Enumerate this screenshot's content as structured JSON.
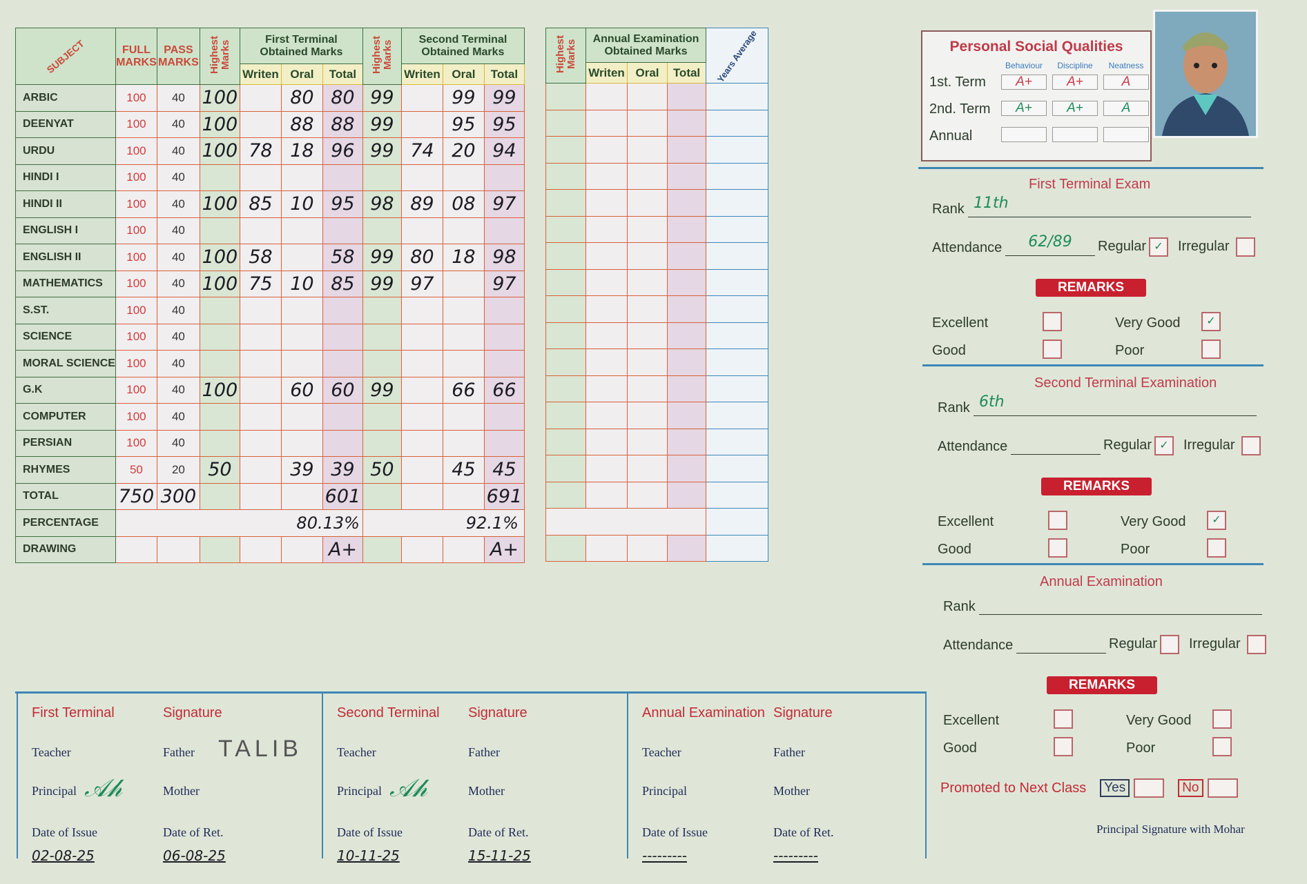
{
  "main_table": {
    "headers": {
      "subject": "SUBJECT",
      "full_marks": "FULL MARKS",
      "pass_marks": "PASS MARKS",
      "highest_marks": "Highest Marks",
      "first_terminal": "First Terminal Obtained Marks",
      "second_terminal": "Second Terminal Obtained Marks",
      "writen": "Writen",
      "oral": "Oral",
      "total": "Total"
    },
    "rows": [
      {
        "subject": "ARBIC",
        "full": "100",
        "pass": "40",
        "ft_high": "100",
        "ft_w": "",
        "ft_o": "80",
        "ft_t": "80",
        "st_high": "99",
        "st_w": "",
        "st_o": "99",
        "st_t": "99"
      },
      {
        "subject": "DEENYAT",
        "full": "100",
        "pass": "40",
        "ft_high": "100",
        "ft_w": "",
        "ft_o": "88",
        "ft_t": "88",
        "st_high": "99",
        "st_w": "",
        "st_o": "95",
        "st_t": "95"
      },
      {
        "subject": "URDU",
        "full": "100",
        "pass": "40",
        "ft_high": "100",
        "ft_w": "78",
        "ft_o": "18",
        "ft_t": "96",
        "st_high": "99",
        "st_w": "74",
        "st_o": "20",
        "st_t": "94"
      },
      {
        "subject": "HINDI I",
        "full": "100",
        "pass": "40",
        "ft_high": "",
        "ft_w": "",
        "ft_o": "",
        "ft_t": "",
        "st_high": "",
        "st_w": "",
        "st_o": "",
        "st_t": ""
      },
      {
        "subject": "HINDI II",
        "full": "100",
        "pass": "40",
        "ft_high": "100",
        "ft_w": "85",
        "ft_o": "10",
        "ft_t": "95",
        "st_high": "98",
        "st_w": "89",
        "st_o": "08",
        "st_t": "97"
      },
      {
        "subject": "ENGLISH I",
        "full": "100",
        "pass": "40",
        "ft_high": "",
        "ft_w": "",
        "ft_o": "",
        "ft_t": "",
        "st_high": "",
        "st_w": "",
        "st_o": "",
        "st_t": ""
      },
      {
        "subject": "ENGLISH II",
        "full": "100",
        "pass": "40",
        "ft_high": "100",
        "ft_w": "58",
        "ft_o": "",
        "ft_t": "58",
        "st_high": "99",
        "st_w": "80",
        "st_o": "18",
        "st_t": "98"
      },
      {
        "subject": "MATHEMATICS",
        "full": "100",
        "pass": "40",
        "ft_high": "100",
        "ft_w": "75",
        "ft_o": "10",
        "ft_t": "85",
        "st_high": "99",
        "st_w": "97",
        "st_o": "",
        "st_t": "97"
      },
      {
        "subject": "S.ST.",
        "full": "100",
        "pass": "40",
        "ft_high": "",
        "ft_w": "",
        "ft_o": "",
        "ft_t": "",
        "st_high": "",
        "st_w": "",
        "st_o": "",
        "st_t": ""
      },
      {
        "subject": "SCIENCE",
        "full": "100",
        "pass": "40",
        "ft_high": "",
        "ft_w": "",
        "ft_o": "",
        "ft_t": "",
        "st_high": "",
        "st_w": "",
        "st_o": "",
        "st_t": ""
      },
      {
        "subject": "MORAL SCIENCE",
        "full": "100",
        "pass": "40",
        "ft_high": "",
        "ft_w": "",
        "ft_o": "",
        "ft_t": "",
        "st_high": "",
        "st_w": "",
        "st_o": "",
        "st_t": ""
      },
      {
        "subject": "G.K",
        "full": "100",
        "pass": "40",
        "ft_high": "100",
        "ft_w": "",
        "ft_o": "60",
        "ft_t": "60",
        "st_high": "99",
        "st_w": "",
        "st_o": "66",
        "st_t": "66"
      },
      {
        "subject": "COMPUTER",
        "full": "100",
        "pass": "40",
        "ft_high": "",
        "ft_w": "",
        "ft_o": "",
        "ft_t": "",
        "st_high": "",
        "st_w": "",
        "st_o": "",
        "st_t": ""
      },
      {
        "subject": "PERSIAN",
        "full": "100",
        "pass": "40",
        "ft_high": "",
        "ft_w": "",
        "ft_o": "",
        "ft_t": "",
        "st_high": "",
        "st_w": "",
        "st_o": "",
        "st_t": ""
      },
      {
        "subject": "RHYMES",
        "full": "50",
        "pass": "20",
        "ft_high": "50",
        "ft_w": "",
        "ft_o": "39",
        "ft_t": "39",
        "st_high": "50",
        "st_w": "",
        "st_o": "45",
        "st_t": "45"
      },
      {
        "subject": "TOTAL",
        "full": "750",
        "pass": "300",
        "ft_high": "",
        "ft_w": "",
        "ft_o": "",
        "ft_t": "601",
        "st_high": "",
        "st_w": "",
        "st_o": "",
        "st_t": "691"
      }
    ],
    "percentage": {
      "label": "PERCENTAGE",
      "first": "80.13%",
      "second": "92.1%"
    },
    "drawing": {
      "label": "DRAWING",
      "first": "A+",
      "second": "A+"
    }
  },
  "annual_table": {
    "highest_marks": "Highest Marks",
    "title": "Annual Examination Obtained Marks",
    "writen": "Writen",
    "oral": "Oral",
    "total": "Total",
    "years_average": "Years Average"
  },
  "personal_social": {
    "title": "Personal Social Qualities",
    "columns": [
      "Behaviour",
      "Discipline",
      "Neatness"
    ],
    "rows": [
      {
        "label": "1st. Term",
        "values": [
          "A+",
          "A+",
          "A"
        ]
      },
      {
        "label": "2nd. Term",
        "values": [
          "A+",
          "A+",
          "A"
        ]
      },
      {
        "label": "Annual",
        "values": [
          "",
          "",
          ""
        ]
      }
    ]
  },
  "exams": [
    {
      "title": "First Terminal Exam",
      "rank": "11th",
      "attendance": "62/89",
      "regular": true,
      "irregular": false,
      "remarks": {
        "excellent": false,
        "very_good": true,
        "good": false,
        "poor": false
      }
    },
    {
      "title": "Second Terminal Examination",
      "rank": "6th",
      "attendance": "",
      "regular": true,
      "irregular": false,
      "remarks": {
        "excellent": false,
        "very_good": true,
        "good": false,
        "poor": false
      }
    },
    {
      "title": "Annual Examination",
      "rank": "",
      "attendance": "",
      "regular": false,
      "irregular": false,
      "remarks": {
        "excellent": false,
        "very_good": false,
        "good": false,
        "poor": false
      }
    }
  ],
  "labels": {
    "rank": "Rank",
    "attendance": "Attendance",
    "regular": "Regular",
    "irregular": "Irregular",
    "remarks": "REMARKS",
    "excellent": "Excellent",
    "very_good": "Very Good",
    "good": "Good",
    "poor": "Poor",
    "promoted": "Promoted to Next Class",
    "yes": "Yes",
    "no": "No",
    "principal_sig": "Principal Signature with Mohar",
    "signature": "Signature",
    "teacher": "Teacher",
    "father": "Father",
    "principal": "Principal",
    "mother": "Mother",
    "date_issue": "Date of Issue",
    "date_ret": "Date of Ret."
  },
  "signatures": [
    {
      "title": "First Terminal",
      "father_sig": "TALIB",
      "date_issue": "02-08-25",
      "date_ret": "06-08-25"
    },
    {
      "title": "Second Terminal",
      "father_sig": "",
      "date_issue": "10-11-25",
      "date_ret": "15-11-25"
    },
    {
      "title": "Annual Examination",
      "father_sig": "",
      "date_issue": "---------",
      "date_ret": "---------"
    }
  ],
  "colors": {
    "grid_line": "#d8603a",
    "header_green": "#cfe3cb",
    "title_red": "#c32a34",
    "ink_green": "#1e8a5a"
  }
}
